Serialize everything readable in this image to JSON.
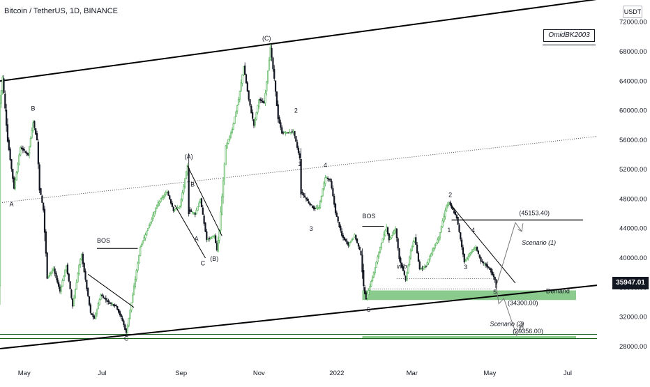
{
  "header": {
    "symbol": "Bitcoin / TetherUS, 1D, BINANCE",
    "currency_badge": "USDT",
    "author": "OmidBK2003",
    "last_price": "35947.01"
  },
  "chart_data": {
    "type": "candlestick",
    "title": "Bitcoin / TetherUS, 1D, BINANCE",
    "y_axis": {
      "ticks": [
        "72000.00",
        "68000.00",
        "64000.00",
        "60000.00",
        "56000.00",
        "52000.00",
        "48000.00",
        "44000.00",
        "40000.00",
        "36000.00",
        "32000.00",
        "28000.00"
      ],
      "range": [
        26000,
        75000
      ]
    },
    "x_axis": {
      "ticks": [
        "May",
        "Jul",
        "Sep",
        "Nov",
        "2022",
        "Mar",
        "May",
        "Jul"
      ],
      "range": [
        "2021-04-12",
        "2022-07-24"
      ]
    },
    "price_path": [
      [
        "2021-04-12",
        61000
      ],
      [
        "2021-04-14",
        64500
      ],
      [
        "2021-04-18",
        56000
      ],
      [
        "2021-04-23",
        49500
      ],
      [
        "2021-04-28",
        55000
      ],
      [
        "2021-05-04",
        54000
      ],
      [
        "2021-05-08",
        58500
      ],
      [
        "2021-05-11",
        56000
      ],
      [
        "2021-05-13",
        49500
      ],
      [
        "2021-05-16",
        46500
      ],
      [
        "2021-05-19",
        37500
      ],
      [
        "2021-05-24",
        38500
      ],
      [
        "2021-05-29",
        35500
      ],
      [
        "2021-06-03",
        39000
      ],
      [
        "2021-06-08",
        33500
      ],
      [
        "2021-06-13",
        39000
      ],
      [
        "2021-06-15",
        40500
      ],
      [
        "2021-06-18",
        37000
      ],
      [
        "2021-06-22",
        32500
      ],
      [
        "2021-06-25",
        31800
      ],
      [
        "2021-06-30",
        35000
      ],
      [
        "2021-07-06",
        34000
      ],
      [
        "2021-07-12",
        33500
      ],
      [
        "2021-07-17",
        31500
      ],
      [
        "2021-07-20",
        29800
      ],
      [
        "2021-07-25",
        35000
      ],
      [
        "2021-07-31",
        41500
      ],
      [
        "2021-08-07",
        44500
      ],
      [
        "2021-08-14",
        47500
      ],
      [
        "2021-08-21",
        49000
      ],
      [
        "2021-08-26",
        46500
      ],
      [
        "2021-08-31",
        47000
      ],
      [
        "2021-09-06",
        52500
      ],
      [
        "2021-09-07",
        46500
      ],
      [
        "2021-09-12",
        46000
      ],
      [
        "2021-09-16",
        48000
      ],
      [
        "2021-09-21",
        42500
      ],
      [
        "2021-09-27",
        43000
      ],
      [
        "2021-09-29",
        41000
      ],
      [
        "2021-10-01",
        43800
      ],
      [
        "2021-10-06",
        55000
      ],
      [
        "2021-10-11",
        57500
      ],
      [
        "2021-10-16",
        61500
      ],
      [
        "2021-10-20",
        66000
      ],
      [
        "2021-10-24",
        61500
      ],
      [
        "2021-10-28",
        58000
      ],
      [
        "2021-11-01",
        61500
      ],
      [
        "2021-11-05",
        61000
      ],
      [
        "2021-11-10",
        68500
      ],
      [
        "2021-11-13",
        64200
      ],
      [
        "2021-11-16",
        59000
      ],
      [
        "2021-11-19",
        57000
      ],
      [
        "2021-11-24",
        57000
      ],
      [
        "2021-11-28",
        57200
      ],
      [
        "2021-12-03",
        53500
      ],
      [
        "2021-12-04",
        49000
      ],
      [
        "2021-12-10",
        47500
      ],
      [
        "2021-12-14",
        46700
      ],
      [
        "2021-12-18",
        46800
      ],
      [
        "2021-12-23",
        51000
      ],
      [
        "2021-12-27",
        50500
      ],
      [
        "2021-12-31",
        46200
      ],
      [
        "2022-01-05",
        43000
      ],
      [
        "2022-01-10",
        41800
      ],
      [
        "2022-01-15",
        43100
      ],
      [
        "2022-01-20",
        40500
      ],
      [
        "2022-01-22",
        36000
      ],
      [
        "2022-01-24",
        34500
      ],
      [
        "2022-01-30",
        38000
      ],
      [
        "2022-02-04",
        41500
      ],
      [
        "2022-02-09",
        44200
      ],
      [
        "2022-02-11",
        42500
      ],
      [
        "2022-02-16",
        44000
      ],
      [
        "2022-02-19",
        40000
      ],
      [
        "2022-02-24",
        37000
      ],
      [
        "2022-02-28",
        41000
      ],
      [
        "2022-03-03",
        42800
      ],
      [
        "2022-03-07",
        38500
      ],
      [
        "2022-03-12",
        39000
      ],
      [
        "2022-03-17",
        41000
      ],
      [
        "2022-03-22",
        42800
      ],
      [
        "2022-03-28",
        47100
      ],
      [
        "2022-03-30",
        47500
      ],
      [
        "2022-04-05",
        45500
      ],
      [
        "2022-04-11",
        39500
      ],
      [
        "2022-04-15",
        40500
      ],
      [
        "2022-04-20",
        41500
      ],
      [
        "2022-04-24",
        39500
      ],
      [
        "2022-04-27",
        39200
      ],
      [
        "2022-05-01",
        38500
      ],
      [
        "2022-05-05",
        37000
      ],
      [
        "2022-05-06",
        35947
      ]
    ],
    "channel": {
      "upper": [
        [
          "2021-04-12",
          64000
        ],
        [
          "2022-07-24",
          75100
        ]
      ],
      "middle": [
        [
          "2021-04-12",
          47500
        ],
        [
          "2022-07-24",
          56500
        ]
      ],
      "lower": [
        [
          "2021-04-12",
          27700
        ],
        [
          "2022-07-24",
          36300
        ]
      ]
    },
    "levels": [
      {
        "label": "(45153.40)",
        "price": 45153.4
      },
      {
        "label": "(34300.00)",
        "price": 34300
      },
      {
        "label": "(29356.00)",
        "price": 29356
      }
    ],
    "zones": [
      {
        "label": "Demand",
        "from": 34300,
        "to": 35600,
        "start": "2022-01-21"
      },
      {
        "label": "",
        "from": 29000,
        "to": 29400,
        "start": "2022-01-21"
      }
    ],
    "wave_labels": [
      {
        "text": "A",
        "date": "2021-04-21",
        "price": 47000
      },
      {
        "text": "B",
        "date": "2021-05-08",
        "price": 60000
      },
      {
        "text": "C",
        "date": "2021-07-20",
        "price": 28800
      },
      {
        "text": "(A)",
        "date": "2021-09-07",
        "price": 53500
      },
      {
        "text": "B",
        "date": "2021-09-10",
        "price": 49700
      },
      {
        "text": "A",
        "date": "2021-09-13",
        "price": 42300
      },
      {
        "text": "C",
        "date": "2021-09-18",
        "price": 39000
      },
      {
        "text": "(B)",
        "date": "2021-09-27",
        "price": 39600
      },
      {
        "text": "(C)",
        "date": "2021-11-07",
        "price": 69500
      },
      {
        "text": "2",
        "date": "2021-11-30",
        "price": 59700
      },
      {
        "text": "1",
        "date": "2021-12-03",
        "price": 52500
      },
      {
        "text": "4",
        "date": "2021-12-23",
        "price": 52300
      },
      {
        "text": "3",
        "date": "2021-12-12",
        "price": 43700
      },
      {
        "text": "5",
        "date": "2022-01-26",
        "price": 32700
      },
      {
        "text": "2",
        "date": "2022-03-31",
        "price": 48300
      },
      {
        "text": "1",
        "date": "2022-03-30",
        "price": 43500
      },
      {
        "text": "4",
        "date": "2022-04-18",
        "price": 43500
      },
      {
        "text": "3",
        "date": "2022-04-12",
        "price": 38500
      },
      {
        "text": "5",
        "date": "2022-05-05",
        "price": 35100
      }
    ],
    "annotations": [
      {
        "text": "BOS",
        "date": "2021-06-27",
        "price": 42100
      },
      {
        "text": "BOS",
        "date": "2022-01-21",
        "price": 45400
      },
      {
        "text": "imb",
        "date": "2022-02-17",
        "price": 38600
      },
      {
        "text": "Scenario (1)",
        "date": "2022-05-26",
        "price": 41800
      },
      {
        "text": "Scenario (2)",
        "date": "2022-05-01",
        "price": 30800
      }
    ]
  }
}
